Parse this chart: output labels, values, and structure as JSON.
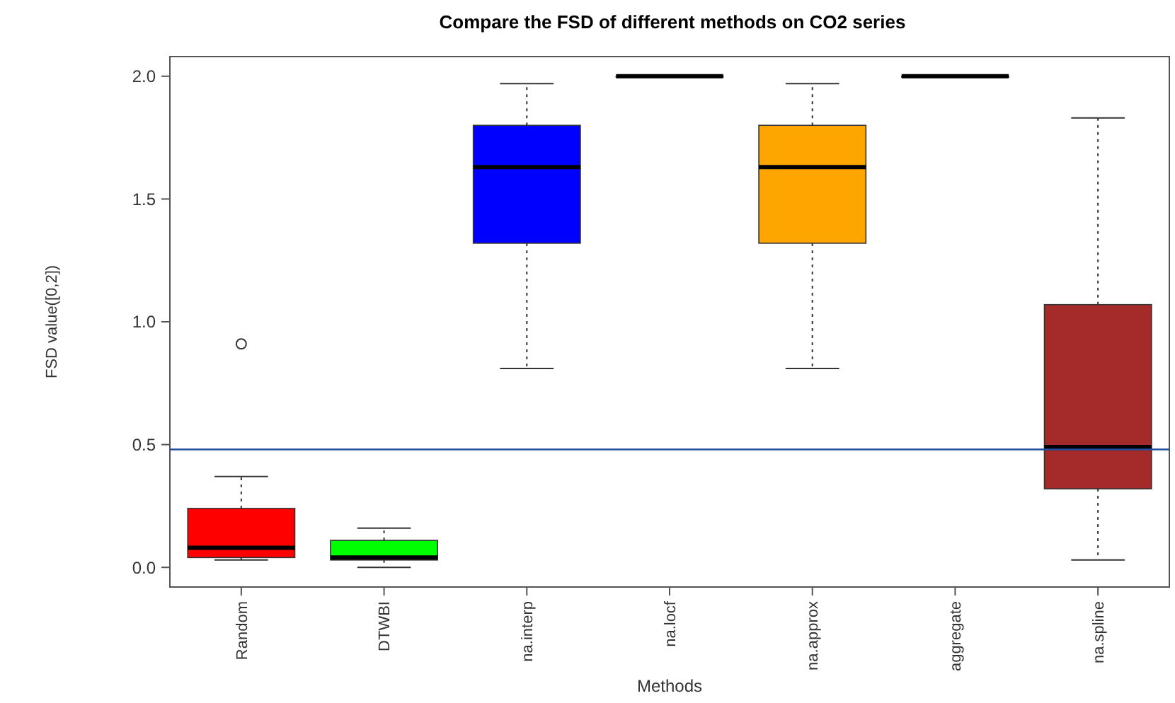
{
  "chart_data": {
    "type": "box",
    "title": "Compare the FSD of different methods on CO2 series",
    "xlabel": "Methods",
    "ylabel": "FSD value([0,2])",
    "categories": [
      "Random",
      "DTWBI",
      "na.interp",
      "na.locf",
      "na.approx",
      "aggregate",
      "na.spline"
    ],
    "colors": [
      "#ff0000",
      "#00ff00",
      "#0000ff",
      "#ffffff",
      "#ffa500",
      "#ffffff",
      "#a52a2a"
    ],
    "boxes": [
      {
        "low": 0.03,
        "q1": 0.04,
        "median": 0.08,
        "q3": 0.24,
        "high": 0.37,
        "outliers": [
          0.91
        ]
      },
      {
        "low": 0.0,
        "q1": 0.03,
        "median": 0.04,
        "q3": 0.11,
        "high": 0.16
      },
      {
        "low": 0.81,
        "q1": 1.32,
        "median": 1.63,
        "q3": 1.8,
        "high": 1.97
      },
      {
        "low": 2.0,
        "q1": 2.0,
        "median": 2.0,
        "q3": 2.0,
        "high": 2.0
      },
      {
        "low": 0.81,
        "q1": 1.32,
        "median": 1.63,
        "q3": 1.8,
        "high": 1.97
      },
      {
        "low": 2.0,
        "q1": 2.0,
        "median": 2.0,
        "q3": 2.0,
        "high": 2.0
      },
      {
        "low": 0.03,
        "q1": 0.32,
        "median": 0.49,
        "q3": 1.07,
        "high": 1.83
      }
    ],
    "ylim": [
      -0.08,
      2.08
    ],
    "yticks": [
      {
        "value": 0,
        "label": "0.0"
      },
      {
        "value": 0.5,
        "label": "0.5"
      },
      {
        "value": 1,
        "label": "1.0"
      },
      {
        "value": 1.5,
        "label": "1.5"
      },
      {
        "value": 2,
        "label": "2.0"
      }
    ],
    "ref_lines": [
      {
        "axis": "y",
        "value": 0.48,
        "color": "#1f4e9c"
      }
    ],
    "grid": false
  }
}
